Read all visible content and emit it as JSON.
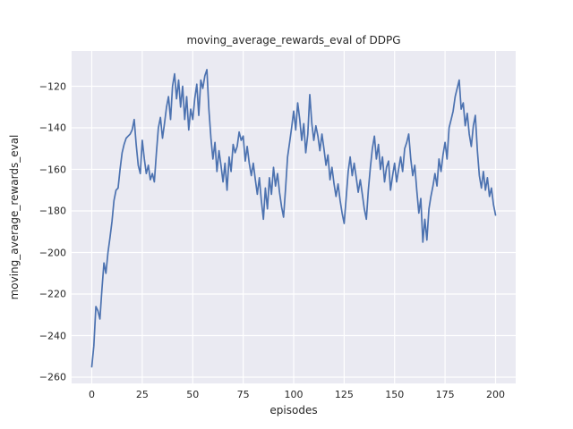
{
  "chart_data": {
    "type": "line",
    "title": "moving_average_rewards_eval of DDPG",
    "xlabel": "episodes",
    "ylabel": "moving_average_rewards_eval",
    "xlim": [
      -10,
      210
    ],
    "ylim": [
      -263,
      -103
    ],
    "x_ticks": [
      0,
      25,
      50,
      75,
      100,
      125,
      150,
      175,
      200
    ],
    "x_tick_labels": [
      "0",
      "25",
      "50",
      "75",
      "100",
      "125",
      "150",
      "175",
      "200"
    ],
    "y_ticks": [
      -260,
      -240,
      -220,
      -200,
      -180,
      -160,
      -140,
      -120
    ],
    "y_tick_labels": [
      "−260",
      "−240",
      "−220",
      "−200",
      "−180",
      "−160",
      "−140",
      "−120"
    ],
    "grid": true,
    "legend": "none",
    "line_color": "#4c72b0",
    "axes_background": "#eaeaf2",
    "grid_color": "#ffffff",
    "series_name": "moving_average_rewards_eval",
    "points": [
      [
        0,
        -255
      ],
      [
        1,
        -245
      ],
      [
        2,
        -226
      ],
      [
        3,
        -228
      ],
      [
        4,
        -232
      ],
      [
        5,
        -218
      ],
      [
        6,
        -205
      ],
      [
        7,
        -210
      ],
      [
        8,
        -200
      ],
      [
        9,
        -193
      ],
      [
        10,
        -185
      ],
      [
        11,
        -175
      ],
      [
        12,
        -170
      ],
      [
        13,
        -169
      ],
      [
        14,
        -160
      ],
      [
        15,
        -152
      ],
      [
        16,
        -148
      ],
      [
        17,
        -145
      ],
      [
        18,
        -144
      ],
      [
        19,
        -143
      ],
      [
        20,
        -141
      ],
      [
        21,
        -136
      ],
      [
        22,
        -148
      ],
      [
        23,
        -158
      ],
      [
        24,
        -162
      ],
      [
        25,
        -146
      ],
      [
        26,
        -155
      ],
      [
        27,
        -162
      ],
      [
        28,
        -158
      ],
      [
        29,
        -165
      ],
      [
        30,
        -162
      ],
      [
        31,
        -166
      ],
      [
        32,
        -152
      ],
      [
        33,
        -140
      ],
      [
        34,
        -135
      ],
      [
        35,
        -145
      ],
      [
        36,
        -138
      ],
      [
        37,
        -130
      ],
      [
        38,
        -125
      ],
      [
        39,
        -136
      ],
      [
        40,
        -120
      ],
      [
        41,
        -114
      ],
      [
        42,
        -126
      ],
      [
        43,
        -117
      ],
      [
        44,
        -130
      ],
      [
        45,
        -120
      ],
      [
        46,
        -136
      ],
      [
        47,
        -125
      ],
      [
        48,
        -141
      ],
      [
        49,
        -131
      ],
      [
        50,
        -136
      ],
      [
        51,
        -126
      ],
      [
        52,
        -119
      ],
      [
        53,
        -134
      ],
      [
        54,
        -117
      ],
      [
        55,
        -121
      ],
      [
        56,
        -115
      ],
      [
        57,
        -112
      ],
      [
        58,
        -131
      ],
      [
        59,
        -145
      ],
      [
        60,
        -155
      ],
      [
        61,
        -147
      ],
      [
        62,
        -161
      ],
      [
        63,
        -151
      ],
      [
        64,
        -158
      ],
      [
        65,
        -166
      ],
      [
        66,
        -157
      ],
      [
        67,
        -170
      ],
      [
        68,
        -154
      ],
      [
        69,
        -161
      ],
      [
        70,
        -148
      ],
      [
        71,
        -152
      ],
      [
        72,
        -149
      ],
      [
        73,
        -142
      ],
      [
        74,
        -146
      ],
      [
        75,
        -144
      ],
      [
        76,
        -156
      ],
      [
        77,
        -149
      ],
      [
        78,
        -157
      ],
      [
        79,
        -163
      ],
      [
        80,
        -157
      ],
      [
        81,
        -165
      ],
      [
        82,
        -172
      ],
      [
        83,
        -164
      ],
      [
        84,
        -175
      ],
      [
        85,
        -184
      ],
      [
        86,
        -169
      ],
      [
        87,
        -179
      ],
      [
        88,
        -164
      ],
      [
        89,
        -172
      ],
      [
        90,
        -159
      ],
      [
        91,
        -168
      ],
      [
        92,
        -162
      ],
      [
        93,
        -171
      ],
      [
        94,
        -178
      ],
      [
        95,
        -183
      ],
      [
        96,
        -169
      ],
      [
        97,
        -154
      ],
      [
        98,
        -147
      ],
      [
        99,
        -140
      ],
      [
        100,
        -132
      ],
      [
        101,
        -141
      ],
      [
        102,
        -128
      ],
      [
        103,
        -136
      ],
      [
        104,
        -146
      ],
      [
        105,
        -138
      ],
      [
        106,
        -152
      ],
      [
        107,
        -143
      ],
      [
        108,
        -124
      ],
      [
        109,
        -138
      ],
      [
        110,
        -146
      ],
      [
        111,
        -139
      ],
      [
        112,
        -144
      ],
      [
        113,
        -151
      ],
      [
        114,
        -143
      ],
      [
        115,
        -150
      ],
      [
        116,
        -158
      ],
      [
        117,
        -153
      ],
      [
        118,
        -165
      ],
      [
        119,
        -159
      ],
      [
        120,
        -167
      ],
      [
        121,
        -173
      ],
      [
        122,
        -167
      ],
      [
        123,
        -175
      ],
      [
        124,
        -181
      ],
      [
        125,
        -186
      ],
      [
        126,
        -174
      ],
      [
        127,
        -161
      ],
      [
        128,
        -154
      ],
      [
        129,
        -163
      ],
      [
        130,
        -157
      ],
      [
        131,
        -164
      ],
      [
        132,
        -171
      ],
      [
        133,
        -165
      ],
      [
        134,
        -172
      ],
      [
        135,
        -179
      ],
      [
        136,
        -184
      ],
      [
        137,
        -170
      ],
      [
        138,
        -159
      ],
      [
        139,
        -150
      ],
      [
        140,
        -144
      ],
      [
        141,
        -155
      ],
      [
        142,
        -148
      ],
      [
        143,
        -160
      ],
      [
        144,
        -154
      ],
      [
        145,
        -166
      ],
      [
        146,
        -159
      ],
      [
        147,
        -156
      ],
      [
        148,
        -170
      ],
      [
        149,
        -163
      ],
      [
        150,
        -157
      ],
      [
        151,
        -166
      ],
      [
        152,
        -160
      ],
      [
        153,
        -154
      ],
      [
        154,
        -161
      ],
      [
        155,
        -150
      ],
      [
        156,
        -147
      ],
      [
        157,
        -143
      ],
      [
        158,
        -155
      ],
      [
        159,
        -163
      ],
      [
        160,
        -158
      ],
      [
        161,
        -170
      ],
      [
        162,
        -181
      ],
      [
        163,
        -174
      ],
      [
        164,
        -195
      ],
      [
        165,
        -184
      ],
      [
        166,
        -194
      ],
      [
        167,
        -179
      ],
      [
        168,
        -173
      ],
      [
        169,
        -168
      ],
      [
        170,
        -162
      ],
      [
        171,
        -168
      ],
      [
        172,
        -155
      ],
      [
        173,
        -161
      ],
      [
        174,
        -153
      ],
      [
        175,
        -147
      ],
      [
        176,
        -155
      ],
      [
        177,
        -140
      ],
      [
        178,
        -136
      ],
      [
        179,
        -132
      ],
      [
        180,
        -125
      ],
      [
        181,
        -121
      ],
      [
        182,
        -117
      ],
      [
        183,
        -131
      ],
      [
        184,
        -128
      ],
      [
        185,
        -139
      ],
      [
        186,
        -133
      ],
      [
        187,
        -143
      ],
      [
        188,
        -149
      ],
      [
        189,
        -139
      ],
      [
        190,
        -134
      ],
      [
        191,
        -151
      ],
      [
        192,
        -163
      ],
      [
        193,
        -169
      ],
      [
        194,
        -161
      ],
      [
        195,
        -170
      ],
      [
        196,
        -164
      ],
      [
        197,
        -173
      ],
      [
        198,
        -169
      ],
      [
        199,
        -177
      ],
      [
        200,
        -182
      ]
    ]
  }
}
